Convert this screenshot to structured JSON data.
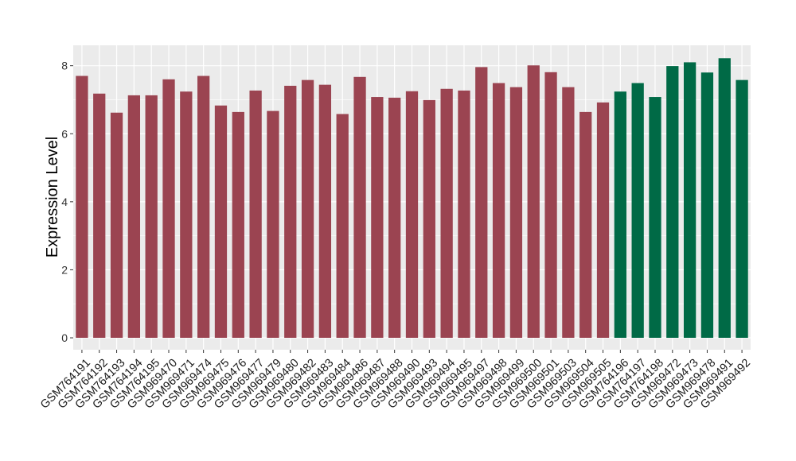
{
  "chart_data": {
    "type": "bar",
    "title": "",
    "xlabel": "",
    "ylabel": "Expression Level",
    "ylim": [
      -0.35,
      8.6
    ],
    "yticks": [
      0,
      2,
      4,
      6,
      8
    ],
    "grid": true,
    "categories": [
      "GSM764191",
      "GSM764192",
      "GSM764193",
      "GSM764194",
      "GSM764195",
      "GSM969470",
      "GSM969471",
      "GSM969474",
      "GSM969475",
      "GSM969476",
      "GSM969477",
      "GSM969479",
      "GSM969480",
      "GSM969482",
      "GSM969483",
      "GSM969484",
      "GSM969486",
      "GSM969487",
      "GSM969488",
      "GSM969490",
      "GSM969493",
      "GSM969494",
      "GSM969495",
      "GSM969497",
      "GSM969498",
      "GSM969499",
      "GSM969500",
      "GSM969501",
      "GSM969503",
      "GSM969504",
      "GSM969505",
      "GSM764196",
      "GSM764197",
      "GSM764198",
      "GSM969472",
      "GSM969473",
      "GSM969478",
      "GSM969491",
      "GSM969492"
    ],
    "values": [
      7.7,
      7.18,
      6.62,
      7.13,
      7.13,
      7.6,
      7.24,
      7.7,
      6.83,
      6.64,
      7.27,
      6.67,
      7.41,
      7.58,
      7.44,
      6.58,
      7.67,
      7.08,
      7.06,
      7.25,
      6.99,
      7.32,
      7.27,
      7.96,
      7.49,
      7.37,
      8.01,
      7.81,
      7.37,
      6.64,
      6.92,
      7.24,
      7.49,
      7.08,
      7.99,
      8.1,
      7.8,
      8.22,
      7.58
    ],
    "group_sizes": [
      31,
      8
    ],
    "colors": [
      "#9b4451",
      "#006a46"
    ],
    "panel_background": "#ebebeb",
    "grid_color": "#ffffff"
  }
}
